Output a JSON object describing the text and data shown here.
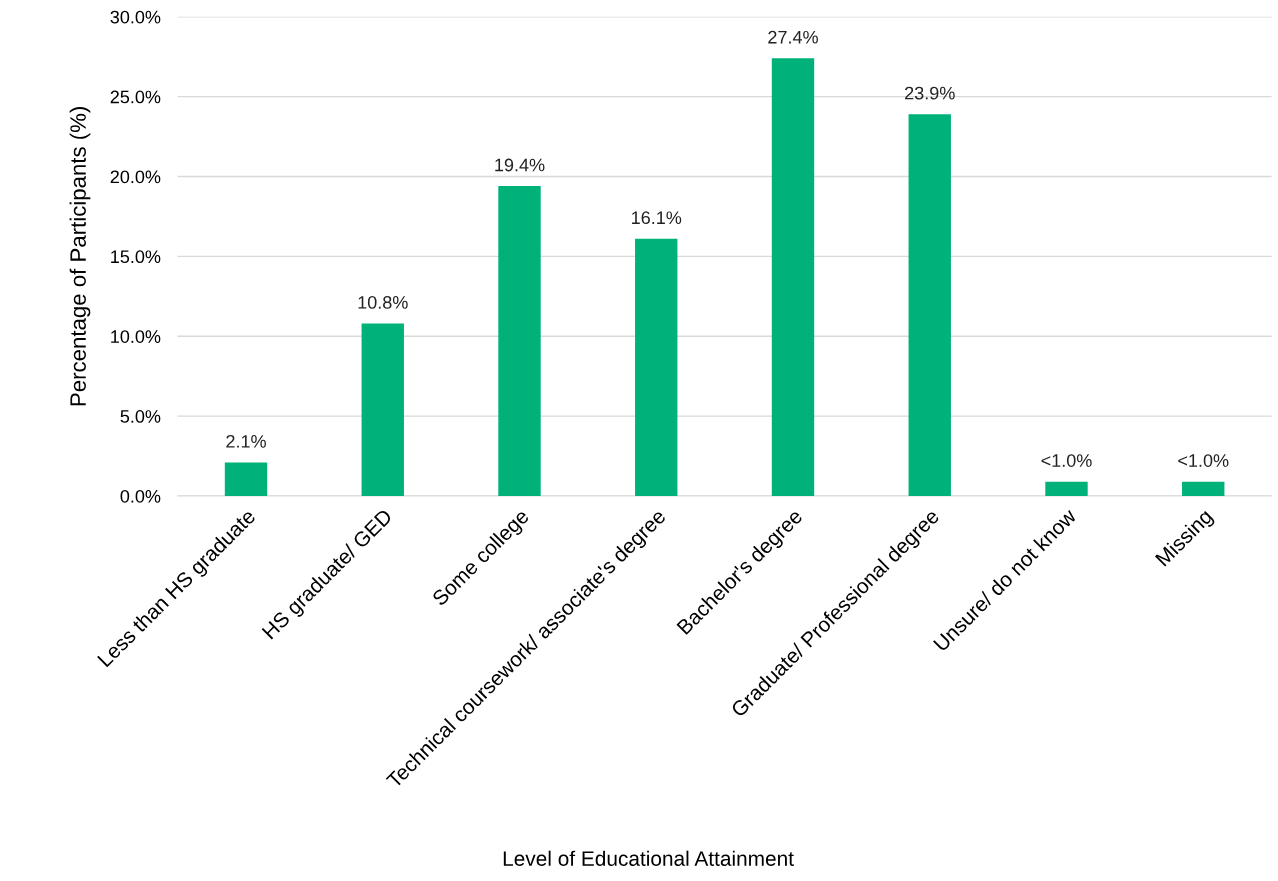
{
  "chart_data": {
    "type": "bar",
    "xlabel": "Level of Educational Attainment",
    "ylabel": "Percentage of Participants (%)",
    "categories": [
      "Less than HS graduate",
      "HS graduate/ GED",
      "Some college",
      "Technical coursework/ associate's degree",
      "Bachelor's degree",
      "Graduate/ Professional degree",
      "Unsure/ do not know",
      "Missing"
    ],
    "values": [
      2.1,
      10.8,
      19.4,
      16.1,
      27.4,
      23.9,
      0.9,
      0.9
    ],
    "value_labels": [
      "2.1%",
      "10.8%",
      "19.4%",
      "16.1%",
      "27.4%",
      "23.9%",
      "<1.0%",
      "<1.0%"
    ],
    "color": "#00b27a",
    "ylim": [
      0,
      30
    ],
    "yticks": [
      {
        "value": 0,
        "label": "0.0%"
      },
      {
        "value": 5,
        "label": "5.0%"
      },
      {
        "value": 10,
        "label": "10.0%"
      },
      {
        "value": 15,
        "label": "15.0%"
      },
      {
        "value": 20,
        "label": "20.0%"
      },
      {
        "value": 25,
        "label": "25.0%"
      },
      {
        "value": 30,
        "label": "30.0%"
      }
    ],
    "grid": "y"
  }
}
